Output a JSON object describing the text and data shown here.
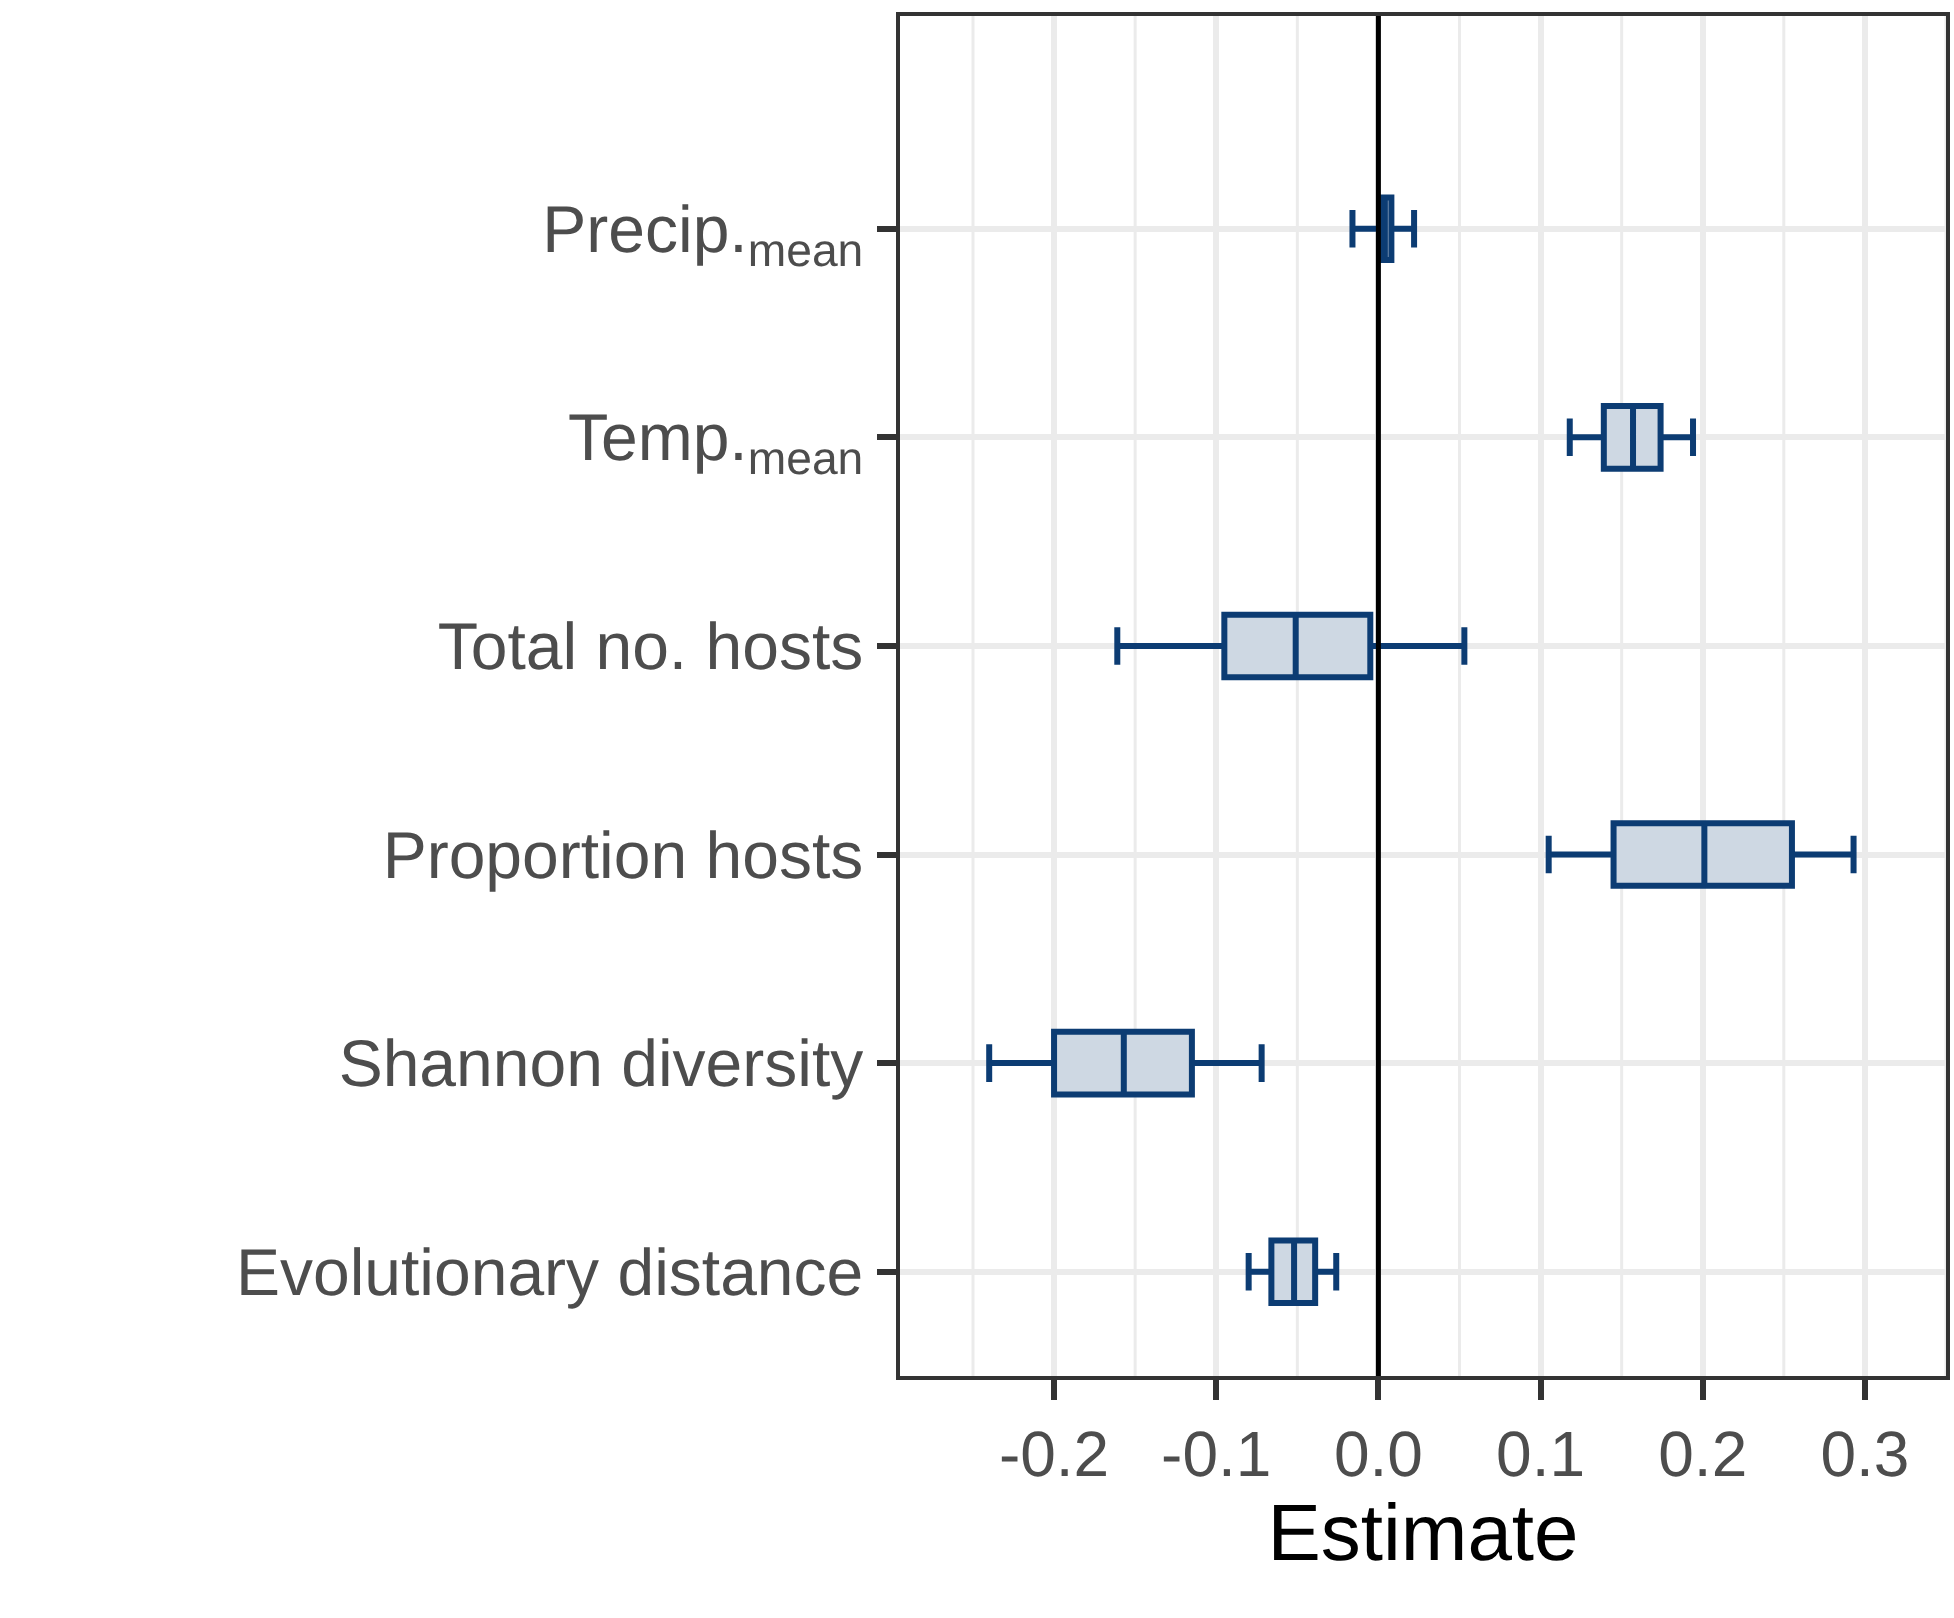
{
  "chart_data": {
    "type": "box",
    "orientation": "horizontal",
    "xlabel": "Estimate",
    "color": "#0c3c73",
    "categories": [
      "Precip.$_{mean}$",
      "Temp.$_{mean}$",
      "Total no. hosts",
      "Proportion hosts",
      "Shannon diversity",
      "Evolutionary distance"
    ],
    "boxes": [
      {
        "low": -0.016,
        "q1": 0.001,
        "median": 0.004,
        "q3": 0.008,
        "high": 0.022
      },
      {
        "low": 0.118,
        "q1": 0.139,
        "median": 0.157,
        "q3": 0.174,
        "high": 0.194
      },
      {
        "low": -0.161,
        "q1": -0.095,
        "median": -0.051,
        "q3": -0.005,
        "high": 0.053
      },
      {
        "low": 0.105,
        "q1": 0.145,
        "median": 0.201,
        "q3": 0.255,
        "high": 0.293
      },
      {
        "low": -0.24,
        "q1": -0.2,
        "median": -0.157,
        "q3": -0.115,
        "high": -0.072
      },
      {
        "low": -0.08,
        "q1": -0.066,
        "median": -0.052,
        "q3": -0.039,
        "high": -0.026
      }
    ],
    "xlim": [
      -0.295,
      0.35
    ],
    "xticks": [
      {
        "value": -0.2,
        "label": "-0.2"
      },
      {
        "value": -0.1,
        "label": "-0.1"
      },
      {
        "value": 0.0,
        "label": "0.0"
      },
      {
        "value": 0.1,
        "label": "0.1"
      },
      {
        "value": 0.2,
        "label": "0.2"
      },
      {
        "value": 0.3,
        "label": "0.3"
      }
    ],
    "ref_lines": [
      {
        "axis": "x",
        "value": 0,
        "color": "#000000"
      }
    ],
    "grid": true
  }
}
